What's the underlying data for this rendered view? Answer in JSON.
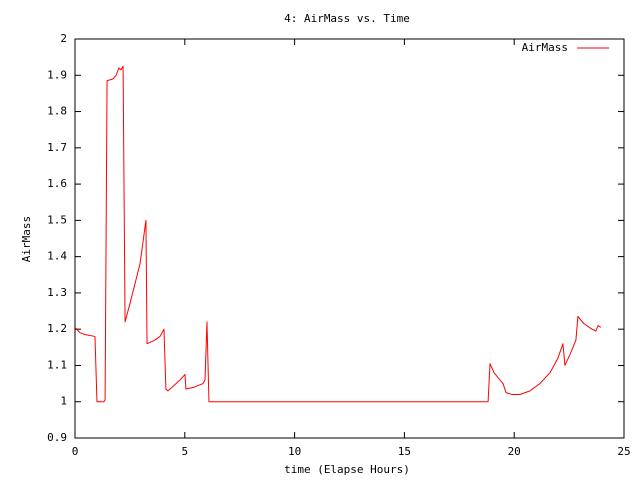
{
  "chart_data": {
    "type": "line",
    "title": "4: AirMass vs. Time",
    "x_label": "time (Elapse Hours)",
    "y_label": "AirMass",
    "x": [
      0,
      0.23,
      0.46,
      0.91,
      1.0,
      1.32,
      1.37,
      1.46,
      1.73,
      1.87,
      2.0,
      2.09,
      2.19,
      2.28,
      2.5,
      2.96,
      3.23,
      3.28,
      3.64,
      3.87,
      4.05,
      4.14,
      4.23,
      4.42,
      4.78,
      5.01,
      5.05,
      5.42,
      5.83,
      5.92,
      6.01,
      6.1,
      18.81,
      18.9,
      19.08,
      19.35,
      19.49,
      19.63,
      19.9,
      20.26,
      20.72,
      21.17,
      21.63,
      21.99,
      22.22,
      22.31,
      22.54,
      22.81,
      22.9,
      23.18,
      23.54,
      23.72,
      23.82,
      23.95
    ],
    "series": [
      {
        "name": "AirMass",
        "color": "#ff0000",
        "values": [
          1.205,
          1.19,
          1.185,
          1.18,
          1.0,
          1.0,
          1.005,
          1.885,
          1.89,
          1.9,
          1.92,
          1.915,
          1.925,
          1.22,
          1.27,
          1.38,
          1.5,
          1.16,
          1.17,
          1.18,
          1.2,
          1.035,
          1.03,
          1.04,
          1.06,
          1.075,
          1.035,
          1.04,
          1.05,
          1.06,
          1.22,
          1.0,
          1.0,
          1.105,
          1.08,
          1.06,
          1.05,
          1.025,
          1.02,
          1.02,
          1.03,
          1.05,
          1.08,
          1.12,
          1.16,
          1.1,
          1.13,
          1.17,
          1.235,
          1.215,
          1.2,
          1.195,
          1.21,
          1.205
        ]
      }
    ],
    "xlim": [
      0,
      25
    ],
    "ylim": [
      0.9,
      2
    ],
    "xticks": [
      0,
      5,
      10,
      15,
      20,
      25
    ],
    "yticks": [
      0.9,
      1,
      1.1,
      1.2,
      1.3,
      1.4,
      1.5,
      1.6,
      1.7,
      1.8,
      1.9,
      2
    ],
    "grid": false,
    "legend": "top-right"
  }
}
